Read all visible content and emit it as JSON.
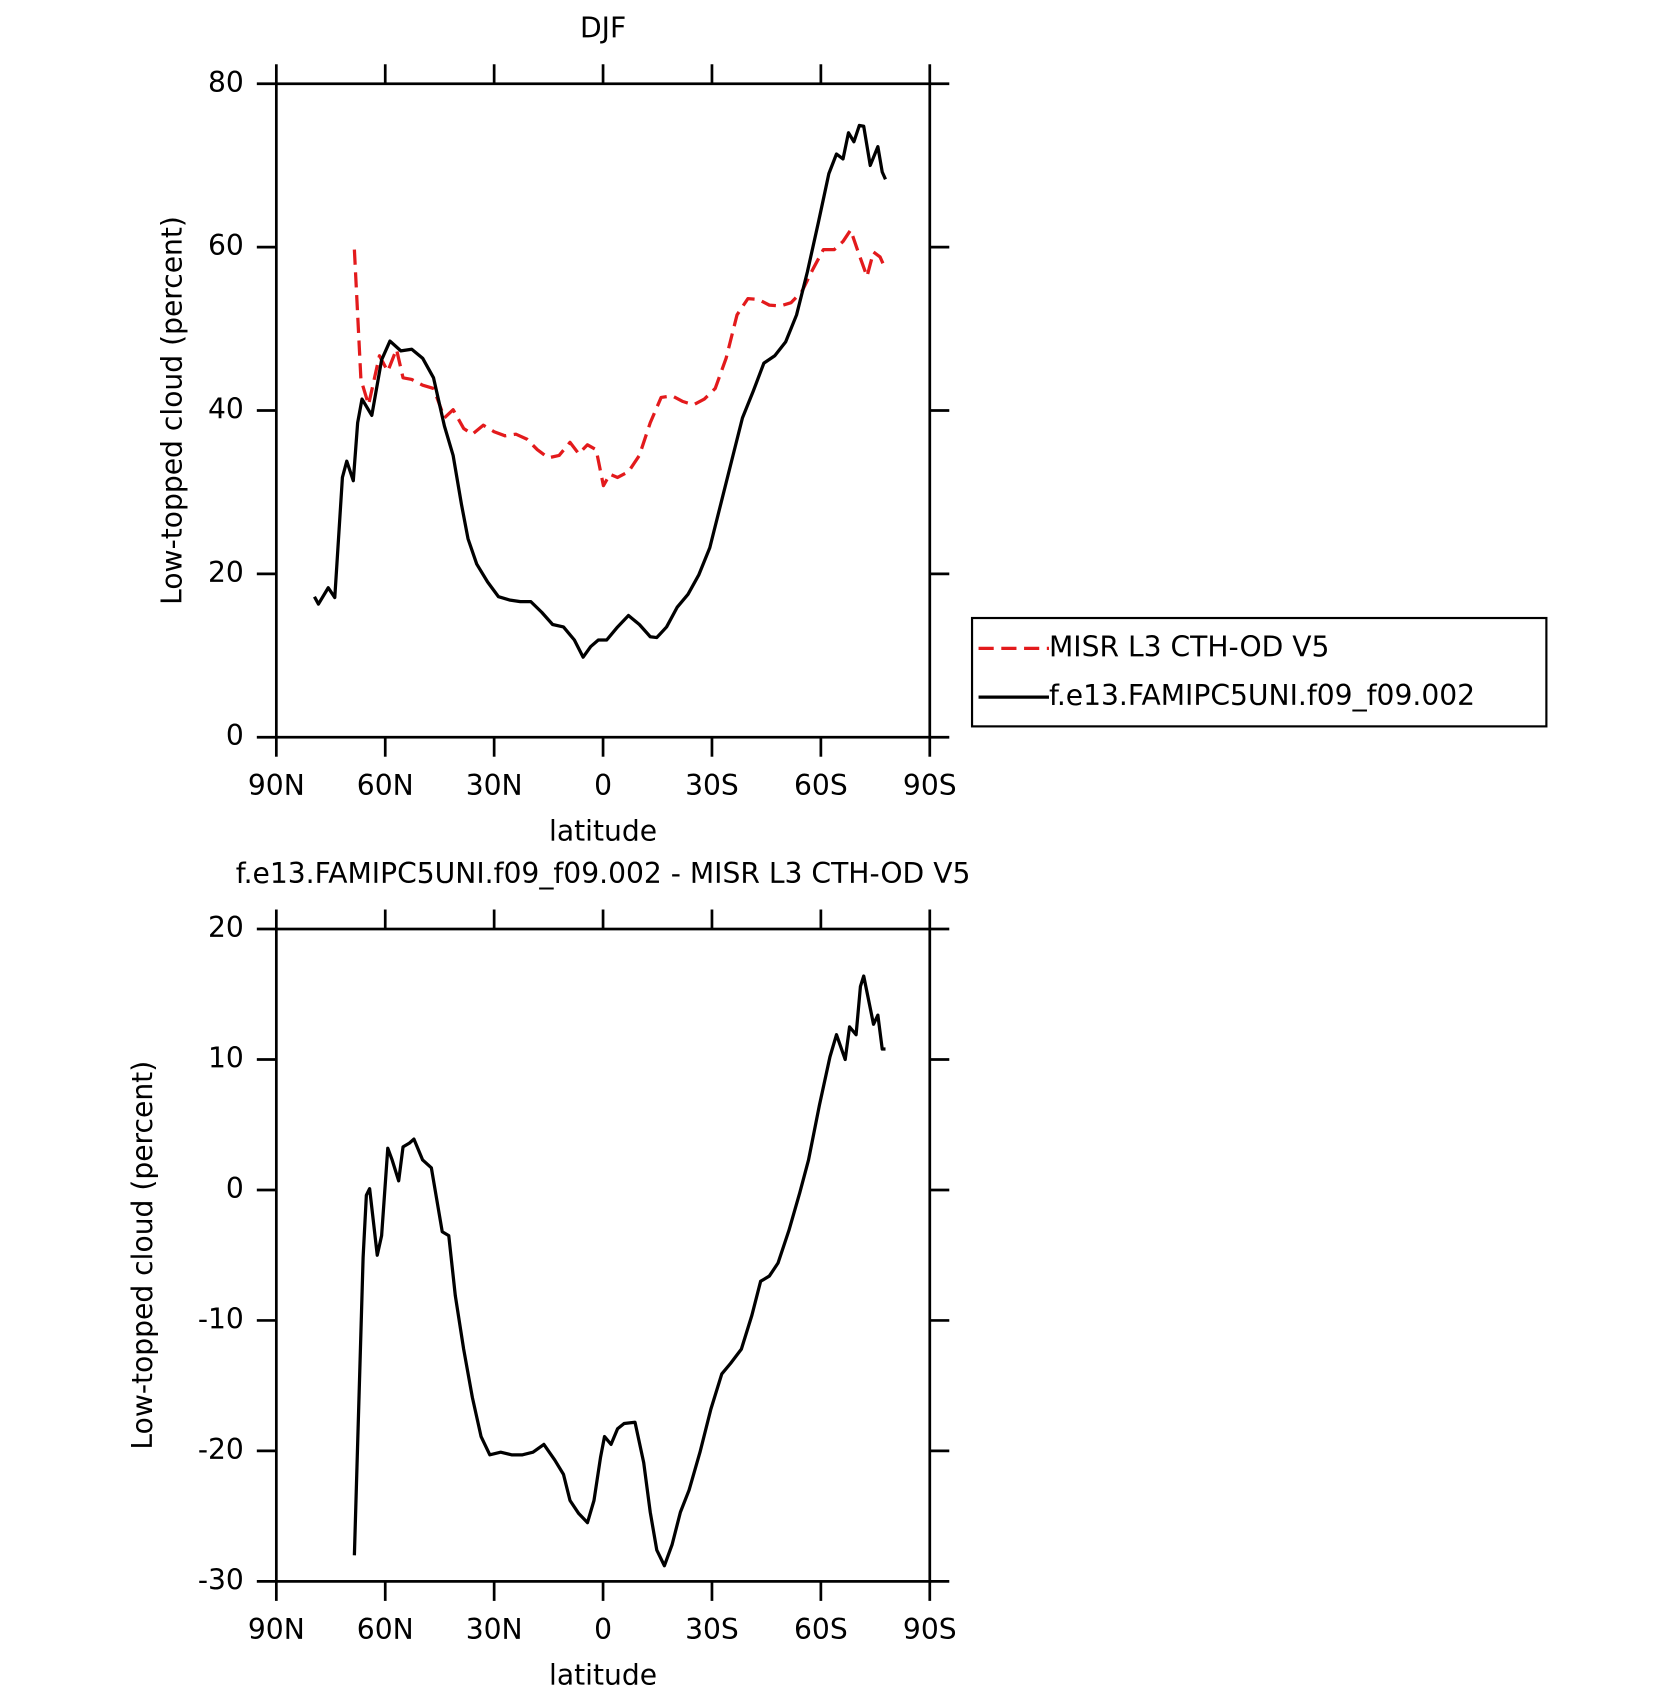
{
  "chart_data": [
    {
      "type": "line",
      "title": "DJF",
      "ylabel": "Low-topped cloud (percent)",
      "xlabel": "latitude",
      "xlim": [
        90,
        -90
      ],
      "xticks": [
        {
          "value": 90,
          "label": "90N"
        },
        {
          "value": 60,
          "label": "60N"
        },
        {
          "value": 30,
          "label": "30N"
        },
        0,
        {
          "value": -30,
          "label": "30S"
        },
        {
          "value": -60,
          "label": "60S"
        },
        {
          "value": -90,
          "label": "90S"
        }
      ],
      "ylim": [
        0,
        80
      ],
      "yticks": [
        0,
        20,
        40,
        60,
        80
      ],
      "legend": "right",
      "series": [
        {
          "name": "MISR L3 CTH-OD V5",
          "color": "#e31a1c",
          "linestyle": "dashed",
          "x": [
            68.5,
            66.7,
            64.6,
            61.6,
            59.3,
            56.9,
            55.1,
            52.7,
            49.7,
            46.7,
            43.7,
            41.3,
            38.4,
            36.0,
            33.0,
            30.0,
            27.0,
            24.0,
            21.0,
            18.1,
            15.1,
            12.1,
            9.1,
            6.7,
            4.3,
            1.9,
            -0.1,
            -1.9,
            -4.0,
            -7.0,
            -10.0,
            -13.0,
            -16.0,
            -19.0,
            -22.0,
            -24.9,
            -27.9,
            -30.9,
            -33.9,
            -36.9,
            -39.9,
            -42.8,
            -45.8,
            -48.8,
            -51.8,
            -54.8,
            -57.8,
            -60.7,
            -63.7,
            -66.1,
            -68.2,
            -70.6,
            -72.7,
            -74.5,
            -76.3,
            -77.8
          ],
          "values": [
            59.7,
            43.8,
            40.7,
            46.7,
            44.8,
            47.5,
            44.0,
            43.8,
            43.1,
            42.7,
            39.1,
            40.1,
            37.8,
            37.1,
            38.2,
            37.4,
            36.9,
            37.1,
            36.5,
            35.2,
            34.2,
            34.5,
            36.1,
            34.7,
            35.8,
            35.2,
            30.8,
            32.2,
            31.8,
            32.5,
            34.5,
            38.5,
            41.6,
            41.8,
            41.1,
            40.7,
            41.4,
            42.7,
            46.4,
            51.7,
            53.7,
            53.6,
            52.9,
            52.8,
            53.2,
            54.6,
            57.3,
            59.7,
            59.7,
            60.7,
            62.1,
            59.0,
            56.4,
            59.4,
            58.8,
            57.3
          ]
        },
        {
          "name": "f.e13.FAMIPC5UNI.f09_f09.002",
          "color": "#000000",
          "linestyle": "solid",
          "x": [
            79.5,
            78.4,
            75.7,
            73.9,
            71.8,
            70.6,
            68.8,
            67.6,
            66.4,
            63.7,
            61.0,
            58.7,
            55.7,
            52.7,
            49.7,
            46.7,
            43.7,
            41.3,
            39.0,
            37.2,
            34.8,
            31.8,
            28.8,
            25.8,
            22.8,
            19.9,
            16.9,
            13.9,
            10.9,
            7.9,
            5.5,
            3.4,
            1.3,
            -1.0,
            -4.0,
            -7.0,
            -10.0,
            -13.0,
            -14.8,
            -17.5,
            -20.4,
            -23.4,
            -26.4,
            -29.4,
            -32.4,
            -35.4,
            -38.4,
            -41.4,
            -44.3,
            -47.3,
            -50.3,
            -53.3,
            -56.3,
            -59.3,
            -62.2,
            -64.3,
            -66.1,
            -67.6,
            -69.1,
            -70.6,
            -71.8,
            -73.6,
            -75.7,
            -76.9,
            -77.8
          ],
          "values": [
            17.2,
            16.3,
            18.3,
            17.1,
            31.8,
            33.8,
            31.4,
            38.5,
            41.4,
            39.4,
            46.2,
            48.5,
            47.3,
            47.5,
            46.4,
            44.0,
            38.1,
            34.5,
            28.5,
            24.3,
            21.2,
            19.0,
            17.2,
            16.8,
            16.6,
            16.6,
            15.3,
            13.8,
            13.5,
            11.9,
            9.8,
            11.1,
            11.9,
            11.9,
            13.5,
            14.9,
            13.8,
            12.3,
            12.2,
            13.5,
            15.9,
            17.5,
            19.9,
            23.2,
            28.5,
            33.8,
            39.1,
            42.4,
            45.8,
            46.7,
            48.4,
            51.7,
            57.0,
            63.0,
            69.0,
            71.4,
            70.8,
            74.0,
            72.9,
            74.9,
            74.8,
            70.0,
            72.3,
            69.2,
            68.3
          ]
        }
      ]
    },
    {
      "type": "line",
      "title": "f.e13.FAMIPC5UNI.f09_f09.002 - MISR L3 CTH-OD V5",
      "ylabel": "Low-topped cloud (percent)",
      "xlabel": "latitude",
      "xlim": [
        90,
        -90
      ],
      "xticks": [
        {
          "value": 90,
          "label": "90N"
        },
        {
          "value": 60,
          "label": "60N"
        },
        {
          "value": 30,
          "label": "30N"
        },
        0,
        {
          "value": -30,
          "label": "30S"
        },
        {
          "value": -60,
          "label": "60S"
        },
        {
          "value": -90,
          "label": "90S"
        }
      ],
      "ylim": [
        -30,
        20
      ],
      "yticks": [
        -30,
        -20,
        -10,
        0,
        10,
        20
      ],
      "series": [
        {
          "color": "#000000",
          "linestyle": "solid",
          "x": [
            68.5,
            66.1,
            65.2,
            64.3,
            62.2,
            61.0,
            59.3,
            58.1,
            56.3,
            55.1,
            53.3,
            52.1,
            49.7,
            47.3,
            44.3,
            42.5,
            40.7,
            38.4,
            36.0,
            33.6,
            31.2,
            28.2,
            25.2,
            22.2,
            19.3,
            16.3,
            13.3,
            10.9,
            9.1,
            6.7,
            4.3,
            2.5,
            0.7,
            -0.4,
            -2.2,
            -4.0,
            -5.8,
            -8.8,
            -11.2,
            -13.0,
            -14.8,
            -16.9,
            -19.0,
            -21.3,
            -23.7,
            -26.7,
            -29.7,
            -32.7,
            -35.1,
            -38.1,
            -41.0,
            -43.4,
            -45.8,
            -48.2,
            -51.2,
            -54.2,
            -56.6,
            -59.6,
            -62.5,
            -64.3,
            -66.7,
            -67.9,
            -69.7,
            -70.9,
            -71.8,
            -74.5,
            -75.7,
            -76.9,
            -77.8
          ],
          "values": [
            -28.0,
            -5.2,
            -0.4,
            0.1,
            -5.0,
            -3.5,
            3.2,
            2.3,
            0.7,
            3.3,
            3.6,
            3.9,
            2.3,
            1.7,
            -3.2,
            -3.5,
            -8.1,
            -12.2,
            -15.9,
            -18.9,
            -20.3,
            -20.1,
            -20.3,
            -20.3,
            -20.1,
            -19.5,
            -20.7,
            -21.8,
            -23.8,
            -24.8,
            -25.5,
            -23.8,
            -20.5,
            -18.9,
            -19.5,
            -18.3,
            -17.9,
            -17.8,
            -20.9,
            -24.7,
            -27.6,
            -28.8,
            -27.2,
            -24.7,
            -23.0,
            -20.1,
            -16.8,
            -14.1,
            -13.3,
            -12.2,
            -9.6,
            -7.0,
            -6.6,
            -5.6,
            -3.1,
            -0.2,
            2.3,
            6.5,
            10.2,
            11.9,
            10.0,
            12.5,
            11.9,
            15.6,
            16.4,
            12.7,
            13.4,
            10.8,
            10.8
          ]
        }
      ]
    }
  ]
}
